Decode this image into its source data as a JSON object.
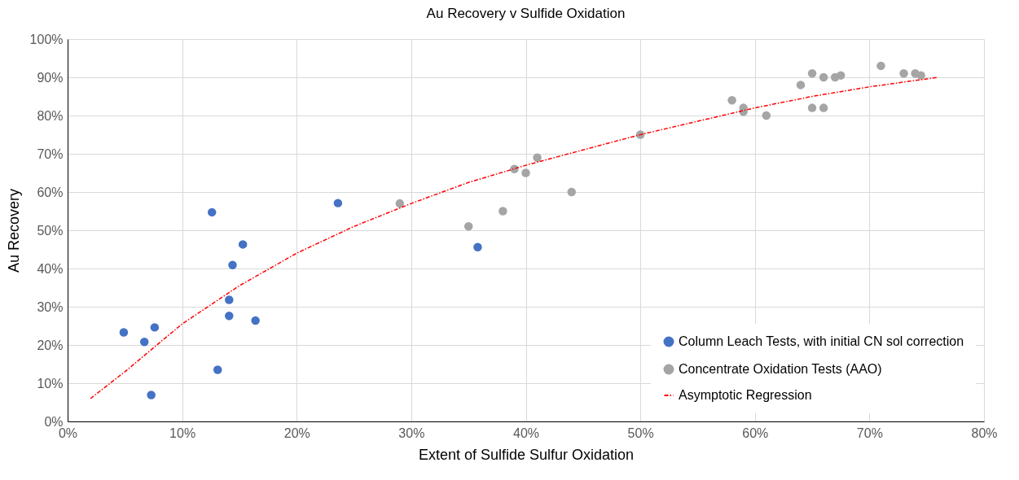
{
  "chart_data": {
    "type": "scatter",
    "title": "Au Recovery v Sulfide Oxidation",
    "xlabel": "Extent of Sulfide Sulfur Oxidation",
    "ylabel": "Au Recovery",
    "xlim": [
      0,
      80
    ],
    "ylim": [
      0,
      100
    ],
    "xticks": [
      {
        "value": 0,
        "label": "0%"
      },
      {
        "value": 10,
        "label": "10%"
      },
      {
        "value": 20,
        "label": "20%"
      },
      {
        "value": 30,
        "label": "30%"
      },
      {
        "value": 40,
        "label": "40%"
      },
      {
        "value": 50,
        "label": "50%"
      },
      {
        "value": 60,
        "label": "60%"
      },
      {
        "value": 70,
        "label": "70%"
      },
      {
        "value": 80,
        "label": "80%"
      }
    ],
    "yticks": [
      {
        "value": 0,
        "label": "0%"
      },
      {
        "value": 10,
        "label": "10%"
      },
      {
        "value": 20,
        "label": "20%"
      },
      {
        "value": 30,
        "label": "30%"
      },
      {
        "value": 40,
        "label": "40%"
      },
      {
        "value": 50,
        "label": "50%"
      },
      {
        "value": 60,
        "label": "60%"
      },
      {
        "value": 70,
        "label": "70%"
      },
      {
        "value": 80,
        "label": "80%"
      },
      {
        "value": 90,
        "label": "90%"
      },
      {
        "value": 100,
        "label": "100%"
      }
    ],
    "grid": true,
    "legend": "bottom right",
    "marker": "circle",
    "series": [
      {
        "name": "Column Leach Tests, with initial CN sol correction",
        "color": "#4472c4",
        "x": [
          4.9,
          6.7,
          7.6,
          7.3,
          12.6,
          13.1,
          14.1,
          14.1,
          14.4,
          15.3,
          16.4,
          23.6,
          35.8
        ],
        "values": [
          23.3,
          20.8,
          24.6,
          6.9,
          54.7,
          13.5,
          31.8,
          27.6,
          40.9,
          46.3,
          26.4,
          57.1,
          45.6
        ]
      },
      {
        "name": "Concentrate Oxidation Tests (AAO)",
        "color": "#a5a5a5",
        "x": [
          29,
          35,
          38,
          39,
          40,
          41,
          44,
          50,
          58,
          59,
          59,
          61,
          64,
          65,
          65,
          66,
          66,
          67,
          67.5,
          71,
          73,
          74,
          74.5
        ],
        "values": [
          57,
          51,
          55,
          66,
          65,
          69,
          60,
          75,
          84,
          82,
          81,
          80,
          88,
          91,
          82,
          90,
          82,
          90,
          90.5,
          93,
          91,
          91,
          90.5
        ]
      },
      {
        "name": "Asymptotic Regression",
        "type": "line",
        "line_style": "dashed",
        "marker": "none",
        "color": "#ff0000",
        "x": [
          2,
          5,
          10,
          15,
          20,
          25,
          30,
          35,
          40,
          45,
          50,
          55,
          60,
          65,
          70,
          76
        ],
        "values": [
          6,
          13,
          25.5,
          35.5,
          44,
          51,
          57,
          62.5,
          67,
          71,
          75,
          78.5,
          82,
          85,
          87.5,
          90
        ]
      }
    ]
  }
}
